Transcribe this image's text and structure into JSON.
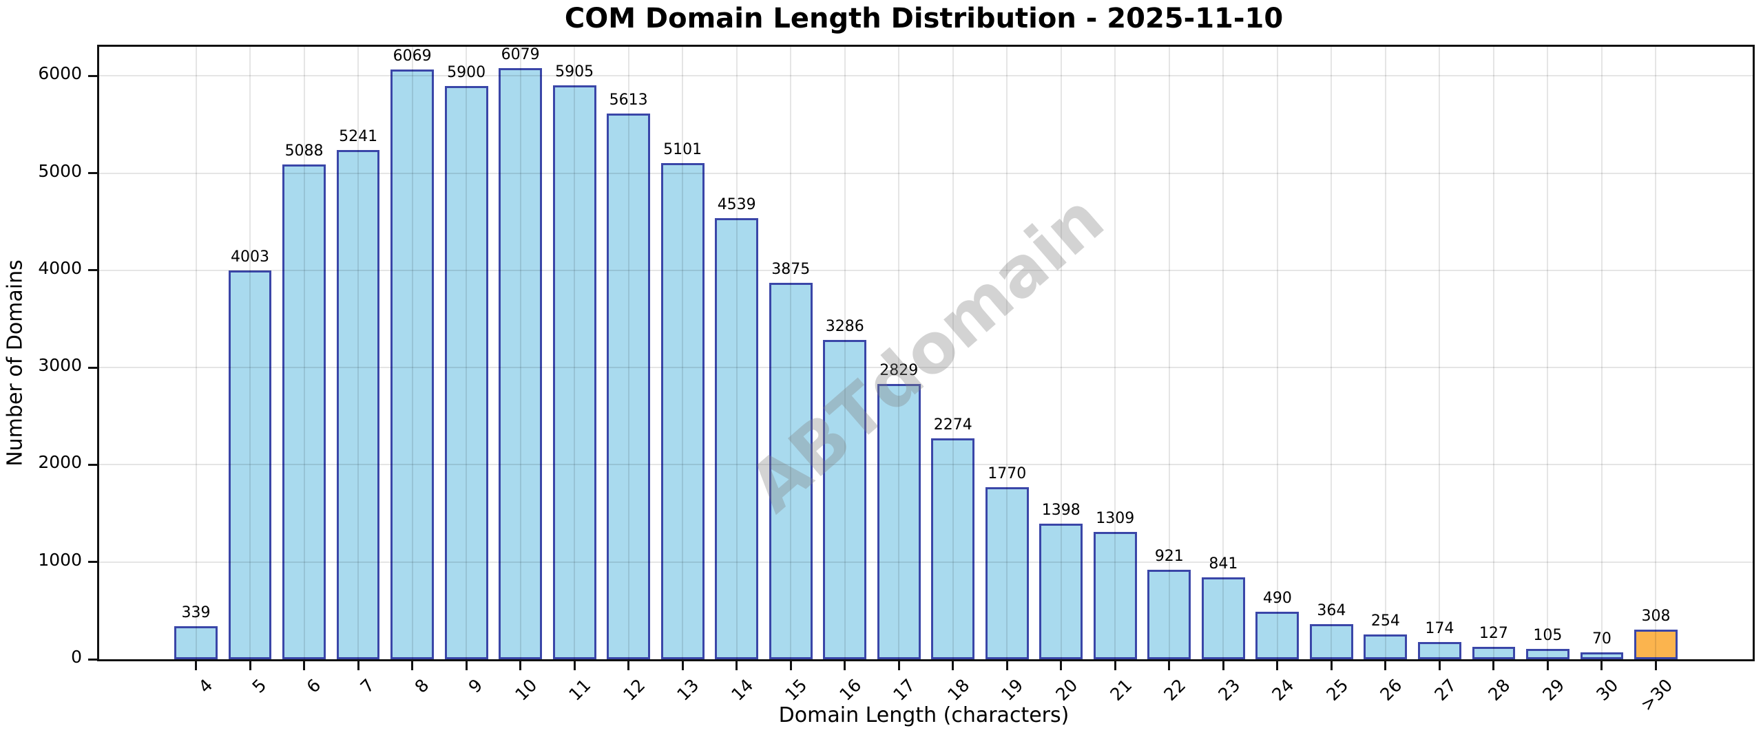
{
  "title": "COM Domain Length Distribution - 2025-11-10",
  "watermark": "ABTdomain",
  "chart_data": {
    "type": "bar",
    "title": "COM Domain Length Distribution - 2025-11-10",
    "xlabel": "Domain Length (characters)",
    "ylabel": "Number of Domains",
    "categories": [
      "4",
      "5",
      "6",
      "7",
      "8",
      "9",
      "10",
      "11",
      "12",
      "13",
      "14",
      "15",
      "16",
      "17",
      "18",
      "19",
      "20",
      "21",
      "22",
      "23",
      "24",
      "25",
      "26",
      "27",
      "28",
      "29",
      "30",
      ">30"
    ],
    "values": [
      339,
      4003,
      5088,
      5241,
      6069,
      5900,
      6079,
      5905,
      5613,
      5101,
      4539,
      3875,
      3286,
      2829,
      2274,
      1770,
      1398,
      1309,
      921,
      841,
      490,
      364,
      254,
      174,
      127,
      105,
      70,
      308
    ],
    "value_labels_shown": true,
    "ylim": [
      0,
      6300
    ],
    "yticks": [
      0,
      1000,
      2000,
      3000,
      4000,
      5000,
      6000
    ],
    "grid": true,
    "legend": "none",
    "bar_fill": "#A9DAEE",
    "bar_edge": "#3A46A8",
    "highlight_index": 27,
    "highlight_fill": "#FBB44E",
    "watermark_text": "ABTdomain",
    "watermark_color": "#808080"
  }
}
